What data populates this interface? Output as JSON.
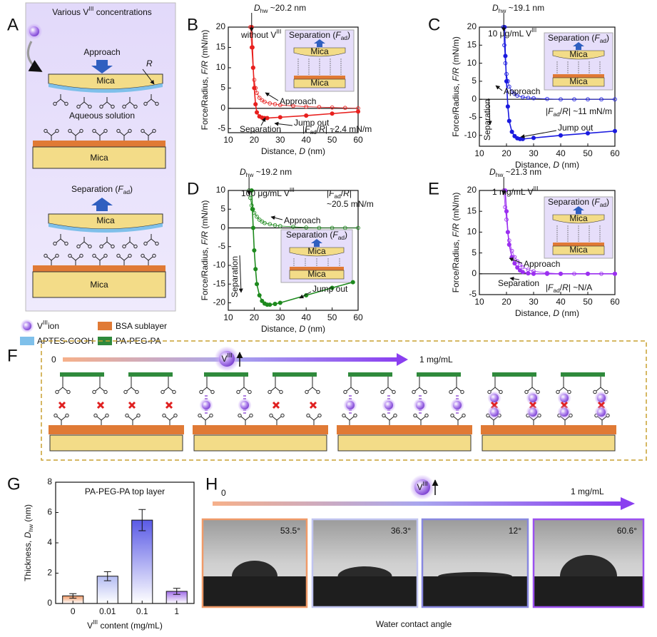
{
  "panel_labels": [
    "A",
    "B",
    "C",
    "D",
    "E",
    "F",
    "G",
    "H"
  ],
  "panel_a": {
    "heading": [
      {
        "t": "Various V"
      },
      {
        "sup": "III"
      },
      {
        "t": " concentrations"
      }
    ],
    "approach": "Approach",
    "radius": "R",
    "mica_top": "Mica",
    "solution": "Aqueous solution",
    "mica_bottom": "Mica",
    "separation": [
      {
        "t": "Separation ("
      },
      {
        "it": "F"
      },
      {
        "sub": "ad"
      },
      {
        "t": ")"
      }
    ],
    "mica_top_2": "Mica",
    "mica_bottom_2": "Mica"
  },
  "legend": [
    [
      {
        "t": "V"
      },
      {
        "sup": "III"
      },
      {
        "t": "ion"
      }
    ],
    [
      {
        "t": "BSA sublayer"
      }
    ],
    [
      {
        "t": "APTES-COOH"
      }
    ],
    [
      {
        "t": "PA-PEG-PA"
      }
    ]
  ],
  "chart_data": [
    {
      "type": "line",
      "condition": [
        {
          "t": "without V"
        },
        {
          "sup": "III"
        }
      ],
      "xlabel": [
        {
          "t": "Distance, "
        },
        {
          "it": "D"
        },
        {
          "t": " (nm)"
        }
      ],
      "ylabel": [
        {
          "t": "Force/Radius, "
        },
        {
          "it": "F/R"
        },
        {
          "t": " (mN/m)"
        }
      ],
      "xlim": [
        10,
        60
      ],
      "xticks": [
        10,
        20,
        30,
        40,
        50,
        60
      ],
      "ylim": [
        -6,
        20
      ],
      "yticks": [
        -5,
        0,
        5,
        10,
        15,
        20
      ],
      "series": [
        {
          "name": "Approach",
          "color": "#e8201e",
          "marker": "open",
          "x": [
            18.5,
            19,
            19.5,
            20,
            20.5,
            21,
            22,
            23,
            24,
            26,
            28,
            30,
            35,
            40,
            45,
            50,
            55,
            60
          ],
          "values": [
            20,
            15,
            10,
            7,
            5,
            3.8,
            2.6,
            2,
            1.6,
            1.2,
            1,
            0.8,
            0.6,
            0.4,
            0.3,
            0.2,
            0.1,
            0
          ]
        },
        {
          "name": "Separation",
          "color": "#e8201e",
          "marker": "filled",
          "x": [
            19,
            19.3,
            19.6,
            20,
            20.5,
            21,
            22,
            23,
            24,
            25,
            30,
            40,
            50,
            60
          ],
          "values": [
            20,
            15,
            10,
            5,
            1,
            -1,
            -2,
            -2.3,
            -2.4,
            -2.4,
            -2.2,
            -1.8,
            -1.3,
            -0.8
          ]
        }
      ],
      "dhw": [
        {
          "it": "D"
        },
        {
          "sub": "hw"
        },
        {
          "t": " ~20.2 nm"
        }
      ],
      "adhesion": [
        [
          {
            "t": "|"
          },
          {
            "it": "F"
          },
          {
            "sub": "ad"
          },
          {
            "t": "/"
          },
          {
            "it": "R"
          },
          {
            "t": "| ~2.4 mN/m"
          }
        ]
      ],
      "jump": "Jump out",
      "inset": {
        "title": [
          {
            "t": "Separation ("
          },
          {
            "it": "F"
          },
          {
            "sub": "ad"
          },
          {
            "t": ")"
          }
        ],
        "top": "Mica",
        "bottom": "Mica"
      }
    },
    {
      "type": "line",
      "condition": [
        {
          "t": "10 μg/mL V"
        },
        {
          "sup": "III"
        }
      ],
      "xlabel": [
        {
          "t": "Distance, "
        },
        {
          "it": "D"
        },
        {
          "t": " (nm)"
        }
      ],
      "ylabel": [
        {
          "t": "Force/Radius, "
        },
        {
          "it": "F/R"
        },
        {
          "t": " (mN/m)"
        }
      ],
      "xlim": [
        10,
        60
      ],
      "xticks": [
        10,
        20,
        30,
        40,
        50,
        60
      ],
      "ylim": [
        -13,
        20
      ],
      "yticks": [
        -10,
        -5,
        0,
        5,
        10,
        15,
        20
      ],
      "series": [
        {
          "name": "Approach",
          "color": "#1a1adf",
          "marker": "open",
          "x": [
            18.8,
            19.2,
            19.6,
            20,
            20.5,
            21,
            22,
            23,
            24,
            26,
            28,
            30,
            35,
            40,
            45,
            50,
            55,
            60
          ],
          "values": [
            20,
            15,
            10,
            7,
            5,
            3.5,
            2.2,
            1.5,
            1,
            0.6,
            0.4,
            0.3,
            0.1,
            0,
            0,
            0,
            0,
            0
          ]
        },
        {
          "name": "Separation",
          "color": "#1a1adf",
          "marker": "filled",
          "x": [
            19.3,
            19.6,
            20,
            20.5,
            21,
            22,
            23,
            24,
            25,
            26,
            30,
            40,
            50,
            60
          ],
          "values": [
            20,
            12,
            5,
            -2,
            -6,
            -9,
            -10.2,
            -10.8,
            -11,
            -11,
            -10.7,
            -10,
            -9.4,
            -8.8
          ]
        }
      ],
      "dhw": [
        {
          "it": "D"
        },
        {
          "sub": "hw"
        },
        {
          "t": " ~19.1 nm"
        }
      ],
      "adhesion": [
        [
          {
            "t": "|"
          },
          {
            "it": "F"
          },
          {
            "sub": "ad"
          },
          {
            "t": "/"
          },
          {
            "it": "R"
          },
          {
            "t": "| ~11 mN/m"
          }
        ]
      ],
      "jump": "Jump out",
      "inset": {
        "title": [
          {
            "t": "Separation ("
          },
          {
            "it": "F"
          },
          {
            "sub": "ad"
          },
          {
            "t": ")"
          }
        ],
        "top": "Mica",
        "bottom": "Mica"
      }
    },
    {
      "type": "line",
      "condition": [
        {
          "t": "100 μg/mL V"
        },
        {
          "sup": "III"
        }
      ],
      "xlabel": [
        {
          "t": "Distance, "
        },
        {
          "it": "D"
        },
        {
          "t": " (nm)"
        }
      ],
      "ylabel": [
        {
          "t": "Force/Radius, "
        },
        {
          "it": "F/R"
        },
        {
          "t": " (mN/m)"
        }
      ],
      "xlim": [
        10,
        60
      ],
      "xticks": [
        10,
        20,
        30,
        40,
        50,
        60
      ],
      "ylim": [
        -22,
        10
      ],
      "yticks": [
        -20,
        -15,
        -10,
        -5,
        0,
        5,
        10
      ],
      "series": [
        {
          "name": "Approach",
          "color": "#1e8a1e",
          "marker": "open",
          "x": [
            18,
            18.5,
            19,
            19.5,
            20,
            21,
            22,
            23,
            24,
            26,
            28,
            30,
            35,
            40,
            45,
            50,
            55,
            60
          ],
          "values": [
            10,
            8,
            6,
            5,
            4,
            3,
            2.2,
            1.7,
            1.3,
            1,
            0.7,
            0.5,
            0.3,
            0.1,
            0,
            0,
            0,
            0
          ]
        },
        {
          "name": "Separation",
          "color": "#1e8a1e",
          "marker": "filled",
          "x": [
            19,
            19.3,
            19.6,
            20,
            20.5,
            21,
            22,
            23,
            24,
            25,
            26,
            28,
            30,
            40,
            50,
            58
          ],
          "values": [
            10,
            5,
            0,
            -6,
            -11,
            -15,
            -18,
            -19.5,
            -20.2,
            -20.5,
            -20.5,
            -20.3,
            -20,
            -18,
            -16,
            -14.5
          ]
        }
      ],
      "dhw": [
        {
          "it": "D"
        },
        {
          "sub": "hw"
        },
        {
          "t": " ~19.2 nm"
        }
      ],
      "adhesion": [
        [
          {
            "t": "|"
          },
          {
            "it": "F"
          },
          {
            "sub": "ad"
          },
          {
            "t": "/"
          },
          {
            "it": "R"
          },
          {
            "t": "|"
          }
        ],
        [
          {
            "t": "~20.5 mN/m"
          }
        ]
      ],
      "jump": "Jump out",
      "inset": {
        "title": [
          {
            "t": "Separation ("
          },
          {
            "it": "F"
          },
          {
            "sub": "ad"
          },
          {
            "t": ")"
          }
        ],
        "top": "Mica",
        "bottom": "Mica"
      }
    },
    {
      "type": "line",
      "condition": [
        {
          "t": "1 mg/mL V"
        },
        {
          "sup": "III"
        }
      ],
      "xlabel": [
        {
          "t": "Distance, "
        },
        {
          "it": "D"
        },
        {
          "t": " (nm)"
        }
      ],
      "ylabel": [
        {
          "t": "Force/Radius, "
        },
        {
          "it": "F/R"
        },
        {
          "t": " (mN/m)"
        }
      ],
      "xlim": [
        10,
        60
      ],
      "xticks": [
        10,
        20,
        30,
        40,
        50,
        60
      ],
      "ylim": [
        -5,
        20
      ],
      "yticks": [
        -5,
        0,
        5,
        10,
        15,
        20
      ],
      "series": [
        {
          "name": "Approach",
          "color": "#9b2ff0",
          "marker": "open",
          "x": [
            19,
            19.5,
            20,
            20.5,
            21,
            22,
            23,
            24,
            25,
            26,
            28,
            30,
            35,
            40,
            45,
            50,
            55,
            60
          ],
          "values": [
            20,
            16,
            13,
            10,
            8,
            5.5,
            4,
            3,
            2.2,
            1.6,
            1,
            0.6,
            0.2,
            0,
            0,
            0,
            0,
            0
          ]
        },
        {
          "name": "Separation",
          "color": "#9b2ff0",
          "marker": "filled",
          "x": [
            19.5,
            20,
            20.5,
            21,
            22,
            23,
            24,
            25,
            26,
            28,
            30,
            35,
            40,
            50,
            60
          ],
          "values": [
            20,
            15,
            10,
            7,
            4,
            2.5,
            1.5,
            0.8,
            0.4,
            0.1,
            0,
            0,
            0,
            0,
            0
          ]
        }
      ],
      "dhw": [
        {
          "it": "D"
        },
        {
          "sub": "hw"
        },
        {
          "t": " ~21.3 nm"
        }
      ],
      "adhesion": [
        [
          {
            "t": "|"
          },
          {
            "it": "F"
          },
          {
            "sub": "ad"
          },
          {
            "t": "/"
          },
          {
            "it": "R"
          },
          {
            "t": "| ~N/A"
          }
        ]
      ],
      "inset": {
        "title": [
          {
            "t": "Separation ("
          },
          {
            "it": "F"
          },
          {
            "sub": "ad"
          },
          {
            "t": ")"
          }
        ],
        "top": "Mica",
        "bottom": "Mica"
      }
    },
    {
      "type": "bar",
      "title": "PA-PEG-PA top layer",
      "ylabel": [
        {
          "t": "Thickness, "
        },
        {
          "it": "D"
        },
        {
          "sub": "hw"
        },
        {
          "t": " (nm)"
        }
      ],
      "xlabel": [
        {
          "t": "V"
        },
        {
          "sup": "III"
        },
        {
          "t": " content (mg/mL)"
        }
      ],
      "categories": [
        "0",
        "0.01",
        "0.1",
        "1"
      ],
      "values": [
        0.5,
        1.8,
        5.5,
        0.8
      ],
      "errors": [
        0.15,
        0.3,
        0.7,
        0.2
      ],
      "colors": [
        "#f09a68",
        "#b4bcf2",
        "#5a5ae6",
        "#a06ce8"
      ],
      "ylim": [
        0,
        8
      ],
      "yticks": [
        0,
        2,
        4,
        6,
        8
      ]
    }
  ],
  "panel_f": {
    "start": "0",
    "end": "1 mg/mL",
    "ion": [
      {
        "t": "V"
      },
      {
        "sup": "III"
      }
    ]
  },
  "panel_h": {
    "start": "0",
    "end": "1 mg/mL",
    "ion": [
      {
        "t": "V"
      },
      {
        "sup": "III"
      }
    ],
    "angles": [
      "53.5°",
      "36.3°",
      "12°",
      "60.6°"
    ],
    "caption": "Water contact angle"
  }
}
